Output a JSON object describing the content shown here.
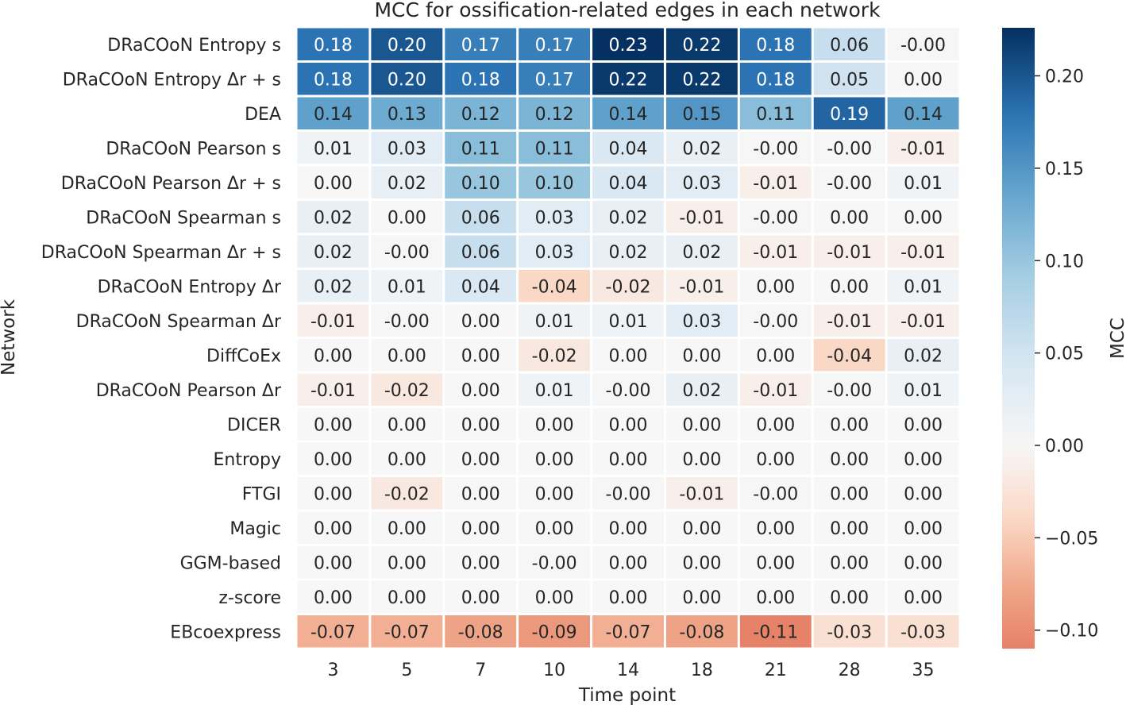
{
  "chart_data": {
    "type": "heatmap",
    "title": "MCC for ossification-related edges in each network",
    "xlabel": "Time point",
    "ylabel": "Network",
    "colorbar_label": "MCC",
    "x": [
      "3",
      "5",
      "7",
      "10",
      "14",
      "18",
      "21",
      "28",
      "35"
    ],
    "y": [
      "DRaCOoN Entropy s",
      "DRaCOoN Entropy Δr + s",
      "DEA",
      "DRaCOoN Pearson s",
      "DRaCOoN Pearson Δr + s",
      "DRaCOoN Spearman s",
      "DRaCOoN Spearman Δr + s",
      "DRaCOoN Entropy Δr",
      "DRaCOoN Spearman Δr",
      "DiffCoEx",
      "DRaCOoN Pearson Δr",
      "DICER",
      "Entropy",
      "FTGI",
      "Magic",
      "GGM-based",
      "z-score",
      "EBcoexpress"
    ],
    "values": [
      [
        0.18,
        0.2,
        0.17,
        0.17,
        0.23,
        0.22,
        0.18,
        0.06,
        -0.001
      ],
      [
        0.18,
        0.2,
        0.18,
        0.17,
        0.22,
        0.22,
        0.18,
        0.05,
        0.0
      ],
      [
        0.14,
        0.13,
        0.12,
        0.12,
        0.14,
        0.15,
        0.11,
        0.19,
        0.14
      ],
      [
        0.01,
        0.03,
        0.11,
        0.11,
        0.04,
        0.02,
        -0.001,
        -0.001,
        -0.01
      ],
      [
        0.0,
        0.02,
        0.1,
        0.1,
        0.04,
        0.03,
        -0.01,
        -0.001,
        0.01
      ],
      [
        0.02,
        0.0,
        0.06,
        0.03,
        0.02,
        -0.01,
        -0.001,
        0.0,
        0.0
      ],
      [
        0.02,
        -0.001,
        0.06,
        0.03,
        0.02,
        0.02,
        -0.01,
        -0.01,
        -0.01
      ],
      [
        0.02,
        0.01,
        0.04,
        -0.04,
        -0.02,
        -0.01,
        0.0,
        0.0,
        0.01
      ],
      [
        -0.01,
        -0.001,
        0.0,
        0.01,
        0.01,
        0.03,
        -0.001,
        -0.01,
        -0.01
      ],
      [
        0.0,
        0.0,
        0.0,
        -0.02,
        0.0,
        0.0,
        0.0,
        -0.04,
        0.02
      ],
      [
        -0.01,
        -0.02,
        0.0,
        0.01,
        -0.001,
        0.02,
        -0.01,
        -0.001,
        0.01
      ],
      [
        0.0,
        0.0,
        0.0,
        0.0,
        0.0,
        0.0,
        0.0,
        0.0,
        0.0
      ],
      [
        0.0,
        0.0,
        0.0,
        0.0,
        0.0,
        0.0,
        0.0,
        0.0,
        0.0
      ],
      [
        0.0,
        -0.02,
        0.0,
        0.0,
        -0.001,
        -0.01,
        -0.001,
        0.0,
        0.0
      ],
      [
        0.0,
        0.0,
        0.0,
        0.0,
        0.0,
        0.0,
        0.0,
        0.0,
        0.0
      ],
      [
        0.0,
        0.0,
        0.0,
        -0.001,
        0.0,
        0.0,
        0.0,
        0.0,
        0.0
      ],
      [
        0.0,
        0.0,
        0.0,
        0.0,
        0.0,
        0.0,
        0.0,
        0.0,
        0.0
      ],
      [
        -0.07,
        -0.07,
        -0.08,
        -0.09,
        -0.07,
        -0.08,
        -0.11,
        -0.03,
        -0.03
      ]
    ],
    "labels": [
      [
        "0.18",
        "0.20",
        "0.17",
        "0.17",
        "0.23",
        "0.22",
        "0.18",
        "0.06",
        "-0.00"
      ],
      [
        "0.18",
        "0.20",
        "0.18",
        "0.17",
        "0.22",
        "0.22",
        "0.18",
        "0.05",
        "0.00"
      ],
      [
        "0.14",
        "0.13",
        "0.12",
        "0.12",
        "0.14",
        "0.15",
        "0.11",
        "0.19",
        "0.14"
      ],
      [
        "0.01",
        "0.03",
        "0.11",
        "0.11",
        "0.04",
        "0.02",
        "-0.00",
        "-0.00",
        "-0.01"
      ],
      [
        "0.00",
        "0.02",
        "0.10",
        "0.10",
        "0.04",
        "0.03",
        "-0.01",
        "-0.00",
        "0.01"
      ],
      [
        "0.02",
        "0.00",
        "0.06",
        "0.03",
        "0.02",
        "-0.01",
        "-0.00",
        "0.00",
        "0.00"
      ],
      [
        "0.02",
        "-0.00",
        "0.06",
        "0.03",
        "0.02",
        "0.02",
        "-0.01",
        "-0.01",
        "-0.01"
      ],
      [
        "0.02",
        "0.01",
        "0.04",
        "-0.04",
        "-0.02",
        "-0.01",
        "0.00",
        "0.00",
        "0.01"
      ],
      [
        "-0.01",
        "-0.00",
        "0.00",
        "0.01",
        "0.01",
        "0.03",
        "-0.00",
        "-0.01",
        "-0.01"
      ],
      [
        "0.00",
        "0.00",
        "0.00",
        "-0.02",
        "0.00",
        "0.00",
        "0.00",
        "-0.04",
        "0.02"
      ],
      [
        "-0.01",
        "-0.02",
        "0.00",
        "0.01",
        "-0.00",
        "0.02",
        "-0.01",
        "-0.00",
        "0.01"
      ],
      [
        "0.00",
        "0.00",
        "0.00",
        "0.00",
        "0.00",
        "0.00",
        "0.00",
        "0.00",
        "0.00"
      ],
      [
        "0.00",
        "0.00",
        "0.00",
        "0.00",
        "0.00",
        "0.00",
        "0.00",
        "0.00",
        "0.00"
      ],
      [
        "0.00",
        "-0.02",
        "0.00",
        "0.00",
        "-0.00",
        "-0.01",
        "-0.00",
        "0.00",
        "0.00"
      ],
      [
        "0.00",
        "0.00",
        "0.00",
        "0.00",
        "0.00",
        "0.00",
        "0.00",
        "0.00",
        "0.00"
      ],
      [
        "0.00",
        "0.00",
        "0.00",
        "-0.00",
        "0.00",
        "0.00",
        "0.00",
        "0.00",
        "0.00"
      ],
      [
        "0.00",
        "0.00",
        "0.00",
        "0.00",
        "0.00",
        "0.00",
        "0.00",
        "0.00",
        "0.00"
      ],
      [
        "-0.07",
        "-0.07",
        "-0.08",
        "-0.09",
        "-0.07",
        "-0.08",
        "-0.11",
        "-0.03",
        "-0.03"
      ]
    ],
    "colorbar_range": [
      -0.11,
      0.226
    ],
    "colorbar_ticks": [
      "0.20",
      "0.15",
      "0.10",
      "0.05",
      "0.00",
      "−0.05",
      "−0.10"
    ],
    "colorbar_tick_values": [
      0.2,
      0.15,
      0.1,
      0.05,
      0.0,
      -0.05,
      -0.1
    ],
    "colormap": "RdBu (diverging, centered at 0)",
    "colors": {
      "negative": "#e58267",
      "zero": "#f7f7f7",
      "positive": "#053061"
    },
    "grid": false
  }
}
